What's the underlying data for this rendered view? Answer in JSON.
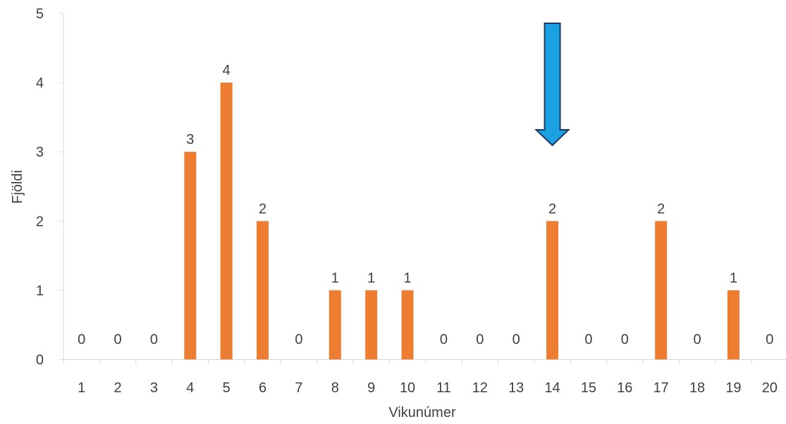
{
  "chart_data": {
    "type": "bar",
    "categories": [
      "1",
      "2",
      "3",
      "4",
      "5",
      "6",
      "7",
      "8",
      "9",
      "10",
      "11",
      "12",
      "13",
      "14",
      "15",
      "16",
      "17",
      "18",
      "19",
      "20"
    ],
    "values": [
      0,
      0,
      0,
      3,
      4,
      2,
      0,
      1,
      1,
      1,
      0,
      0,
      0,
      2,
      0,
      0,
      2,
      0,
      1,
      0
    ],
    "xlabel": "Vikunúmer",
    "ylabel": "Fjöldi",
    "ylim": [
      0,
      5
    ],
    "yticks": [
      0,
      1,
      2,
      3,
      4,
      5
    ],
    "grid": false,
    "bar_color": "#ED7D31",
    "data_labels": true,
    "annotations": [
      {
        "type": "arrow",
        "direction": "down",
        "category": "14",
        "color": "#1BA1E2",
        "outline": "#1F3864"
      }
    ]
  }
}
